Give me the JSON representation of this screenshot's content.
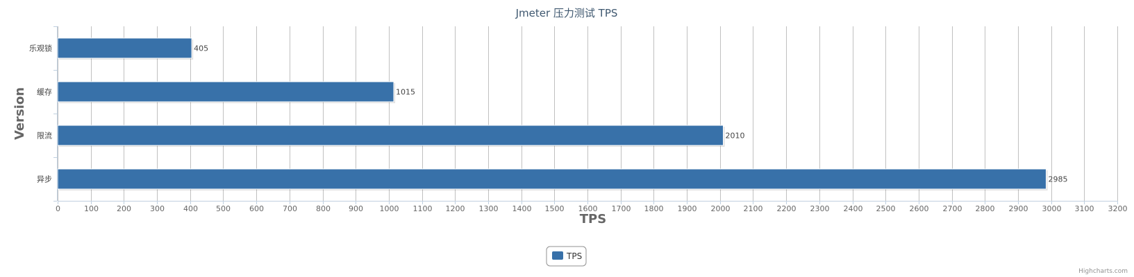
{
  "chart_data": {
    "type": "bar",
    "orientation": "horizontal",
    "title": "Jmeter 压力测试 TPS",
    "xlabel": "TPS",
    "ylabel": "Version",
    "categories": [
      "乐观锁",
      "缓存",
      "限流",
      "异步"
    ],
    "series": [
      {
        "name": "TPS",
        "values": [
          405,
          1015,
          2010,
          2985
        ],
        "color": "#3871a9"
      }
    ],
    "xlim": [
      0,
      3200
    ],
    "tick_step": 100,
    "grid": true,
    "data_labels": true,
    "legend": {
      "position": "bottom-center",
      "entries": [
        "TPS"
      ]
    },
    "credits": "Highcharts.com"
  }
}
